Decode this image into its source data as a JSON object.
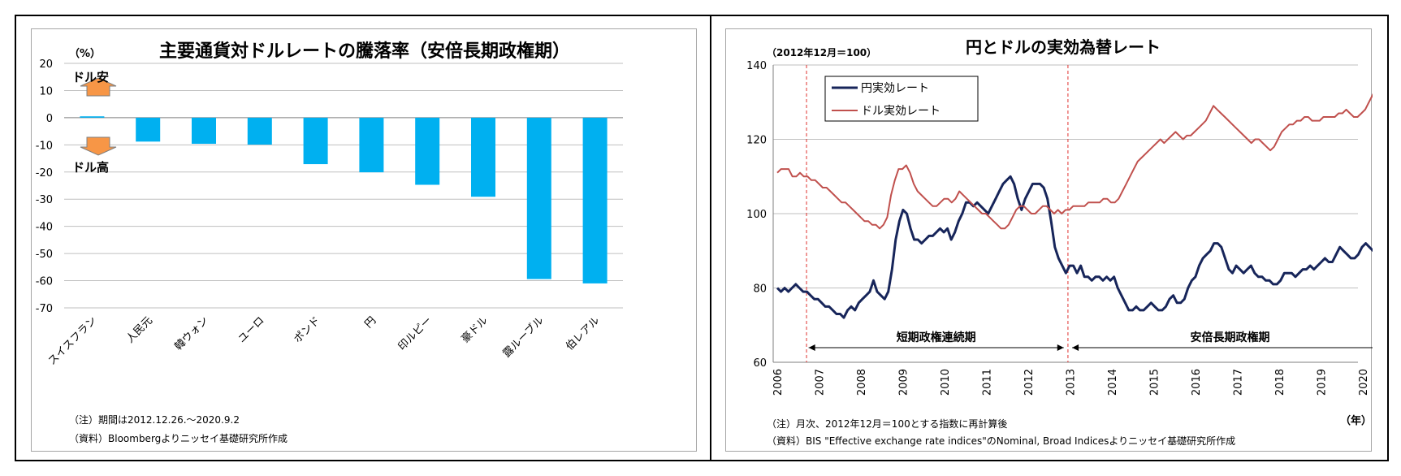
{
  "chart_data": [
    {
      "type": "bar",
      "title": "主要通貨対ドルレートの騰落率（安倍長期政権期）",
      "ylabel": "（%）",
      "ylim": [
        -70,
        20
      ],
      "yticks": [
        "20",
        "10",
        "0",
        "-10",
        "-20",
        "-30",
        "-40",
        "-50",
        "-60",
        "-70"
      ],
      "categories": [
        "スイスフラン",
        "人民元",
        "韓ウォン",
        "ユーロ",
        "ポンド",
        "円",
        "印ルピー",
        "豪ドル",
        "露ルーブル",
        "伯レアル"
      ],
      "values": [
        0.5,
        -8.8,
        -9.6,
        -9.9,
        -17.1,
        -20.1,
        -24.7,
        -29.1,
        -59.4,
        -61.0
      ],
      "bar_color": "#00b0f0",
      "annotations": {
        "up": "ドル安",
        "down": "ドル高"
      },
      "arrow_color": "#f79646",
      "grid": true,
      "notes": [
        "（注）期間は2012.12.26.～2020.9.2",
        "（資料）Bloombergよりニッセイ基礎研究所作成"
      ]
    },
    {
      "type": "line",
      "title": "円とドルの実効為替レート",
      "ylabel": "（2012年12月＝100）",
      "ylim": [
        60,
        140
      ],
      "yticks": [
        "60",
        "80",
        "100",
        "120",
        "140"
      ],
      "x_ticks": [
        "2006",
        "2007",
        "2008",
        "2009",
        "2010",
        "2011",
        "2012",
        "2013",
        "2014",
        "2015",
        "2016",
        "2017",
        "2018",
        "2019",
        "2020"
      ],
      "xlabel": "（年）",
      "grid": true,
      "legend_position": "top-left",
      "series": [
        {
          "name": "円実効レート",
          "color": "#17255a",
          "values": [
            80,
            79,
            80,
            79,
            80,
            81,
            80,
            79,
            79,
            78,
            77,
            77,
            76,
            75,
            75,
            74,
            73,
            73,
            72,
            74,
            75,
            74,
            76,
            77,
            78,
            79,
            82,
            79,
            78,
            77,
            79,
            85,
            93,
            98,
            101,
            100,
            96,
            93,
            93,
            92,
            93,
            94,
            94,
            95,
            96,
            95,
            96,
            93,
            95,
            98,
            100,
            103,
            103,
            102,
            103,
            102,
            101,
            100,
            102,
            104,
            106,
            108,
            109,
            110,
            108,
            104,
            101,
            104,
            106,
            108,
            108,
            108,
            107,
            104,
            98,
            91,
            88,
            86,
            84,
            86,
            86,
            84,
            86,
            83,
            83,
            82,
            83,
            83,
            82,
            83,
            82,
            83,
            80,
            78,
            76,
            74,
            74,
            75,
            74,
            74,
            75,
            76,
            75,
            74,
            74,
            75,
            77,
            78,
            76,
            76,
            77,
            80,
            82,
            83,
            86,
            88,
            89,
            90,
            92,
            92,
            91,
            88,
            85,
            84,
            86,
            85,
            84,
            85,
            86,
            84,
            83,
            83,
            82,
            82,
            81,
            81,
            82,
            84,
            84,
            84,
            83,
            84,
            85,
            85,
            86,
            85,
            86,
            87,
            88,
            87,
            87,
            89,
            91,
            90,
            89,
            88,
            88,
            89,
            91,
            92,
            91,
            90,
            91,
            92,
            92,
            91
          ]
        },
        {
          "name": "ドル実効レート",
          "color": "#c0504d",
          "values": [
            111,
            112,
            112,
            112,
            110,
            110,
            111,
            110,
            110,
            109,
            109,
            108,
            107,
            107,
            106,
            105,
            104,
            103,
            103,
            102,
            101,
            100,
            99,
            98,
            98,
            97,
            97,
            96,
            97,
            99,
            105,
            109,
            112,
            112,
            113,
            111,
            108,
            106,
            105,
            104,
            103,
            102,
            102,
            103,
            104,
            104,
            103,
            104,
            106,
            105,
            104,
            103,
            102,
            101,
            100,
            100,
            99,
            98,
            97,
            96,
            96,
            97,
            99,
            101,
            102,
            102,
            101,
            100,
            100,
            101,
            102,
            102,
            101,
            100,
            101,
            100,
            101,
            101,
            102,
            102,
            102,
            102,
            103,
            103,
            103,
            103,
            104,
            104,
            103,
            103,
            104,
            106,
            108,
            110,
            112,
            114,
            115,
            116,
            117,
            118,
            119,
            120,
            119,
            120,
            121,
            122,
            121,
            120,
            121,
            121,
            122,
            123,
            124,
            125,
            127,
            129,
            128,
            127,
            126,
            125,
            124,
            123,
            122,
            121,
            120,
            119,
            120,
            120,
            119,
            118,
            117,
            118,
            120,
            122,
            123,
            124,
            124,
            125,
            125,
            126,
            126,
            125,
            125,
            125,
            126,
            126,
            126,
            126,
            127,
            127,
            128,
            127,
            126,
            126,
            127,
            128,
            130,
            132,
            134,
            134,
            132,
            131
          ]
        }
      ],
      "periods": [
        {
          "label": "短期政権連続期"
        },
        {
          "label": "安倍長期政権期"
        }
      ],
      "notes": [
        "（注）月次、2012年12月＝100とする指数に再計算後",
        "（資料）BIS \"Effective exchange rate indices\"のNominal, Broad Indicesよりニッセイ基礎研究所作成"
      ]
    }
  ]
}
